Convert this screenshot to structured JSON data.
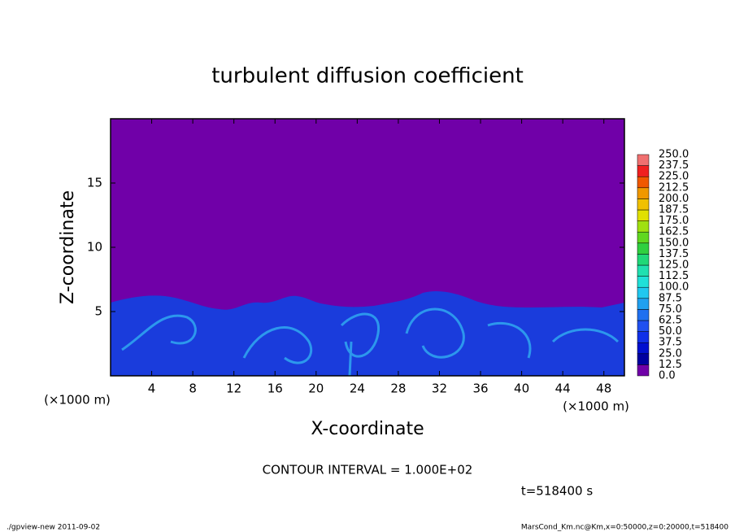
{
  "chart_data": {
    "type": "contour",
    "title": "turbulent diffusion coefficient",
    "xlabel": "X-coordinate",
    "ylabel": "Z-coordinate",
    "x_unit_left": "(×1000 m)",
    "x_unit_right": "(×1000 m)",
    "xlim": [
      0,
      50
    ],
    "xticks": [
      4,
      8,
      12,
      16,
      20,
      24,
      28,
      32,
      36,
      40,
      44,
      48
    ],
    "ylim": [
      0,
      20
    ],
    "yticks": [
      5,
      10,
      15
    ],
    "contour_interval": "CONTOUR INTERVAL = 1.000E+02",
    "time_label": "t=518400 s",
    "colorbar": {
      "levels": [
        {
          "value": 0,
          "label": "0.0"
        },
        {
          "value": 12.5,
          "label": "12.5"
        },
        {
          "value": 25,
          "label": "25.0"
        },
        {
          "value": 37.5,
          "label": "37.5"
        },
        {
          "value": 50,
          "label": "50.0"
        },
        {
          "value": 62.5,
          "label": "62.5"
        },
        {
          "value": 75,
          "label": "75.0"
        },
        {
          "value": 87.5,
          "label": "87.5"
        },
        {
          "value": 100,
          "label": "100.0"
        },
        {
          "value": 112.5,
          "label": "112.5"
        },
        {
          "value": 125,
          "label": "125.0"
        },
        {
          "value": 137.5,
          "label": "137.5"
        },
        {
          "value": 150,
          "label": "150.0"
        },
        {
          "value": 162.5,
          "label": "162.5"
        },
        {
          "value": 175,
          "label": "175.0"
        },
        {
          "value": 187.5,
          "label": "187.5"
        },
        {
          "value": 200,
          "label": "200.0"
        },
        {
          "value": 212.5,
          "label": "212.5"
        },
        {
          "value": 225,
          "label": "225.0"
        },
        {
          "value": 237.5,
          "label": "237.5"
        },
        {
          "value": 250,
          "label": "250.0"
        }
      ],
      "colors": [
        "#7000a8",
        "#0000a0",
        "#0010d0",
        "#1030e8",
        "#2050f0",
        "#2070f0",
        "#20a0f0",
        "#20c8f0",
        "#20e0d8",
        "#20e0b0",
        "#20d878",
        "#30d040",
        "#60d820",
        "#a0e010",
        "#e0e000",
        "#f0c000",
        "#f09800",
        "#f05800",
        "#f02020",
        "#f07070"
      ]
    }
  },
  "footer": {
    "left": "./gpview-new  2011-09-02",
    "right": "MarsCond_Km.nc@Km,x=0:50000,z=0:20000,t=518400"
  }
}
